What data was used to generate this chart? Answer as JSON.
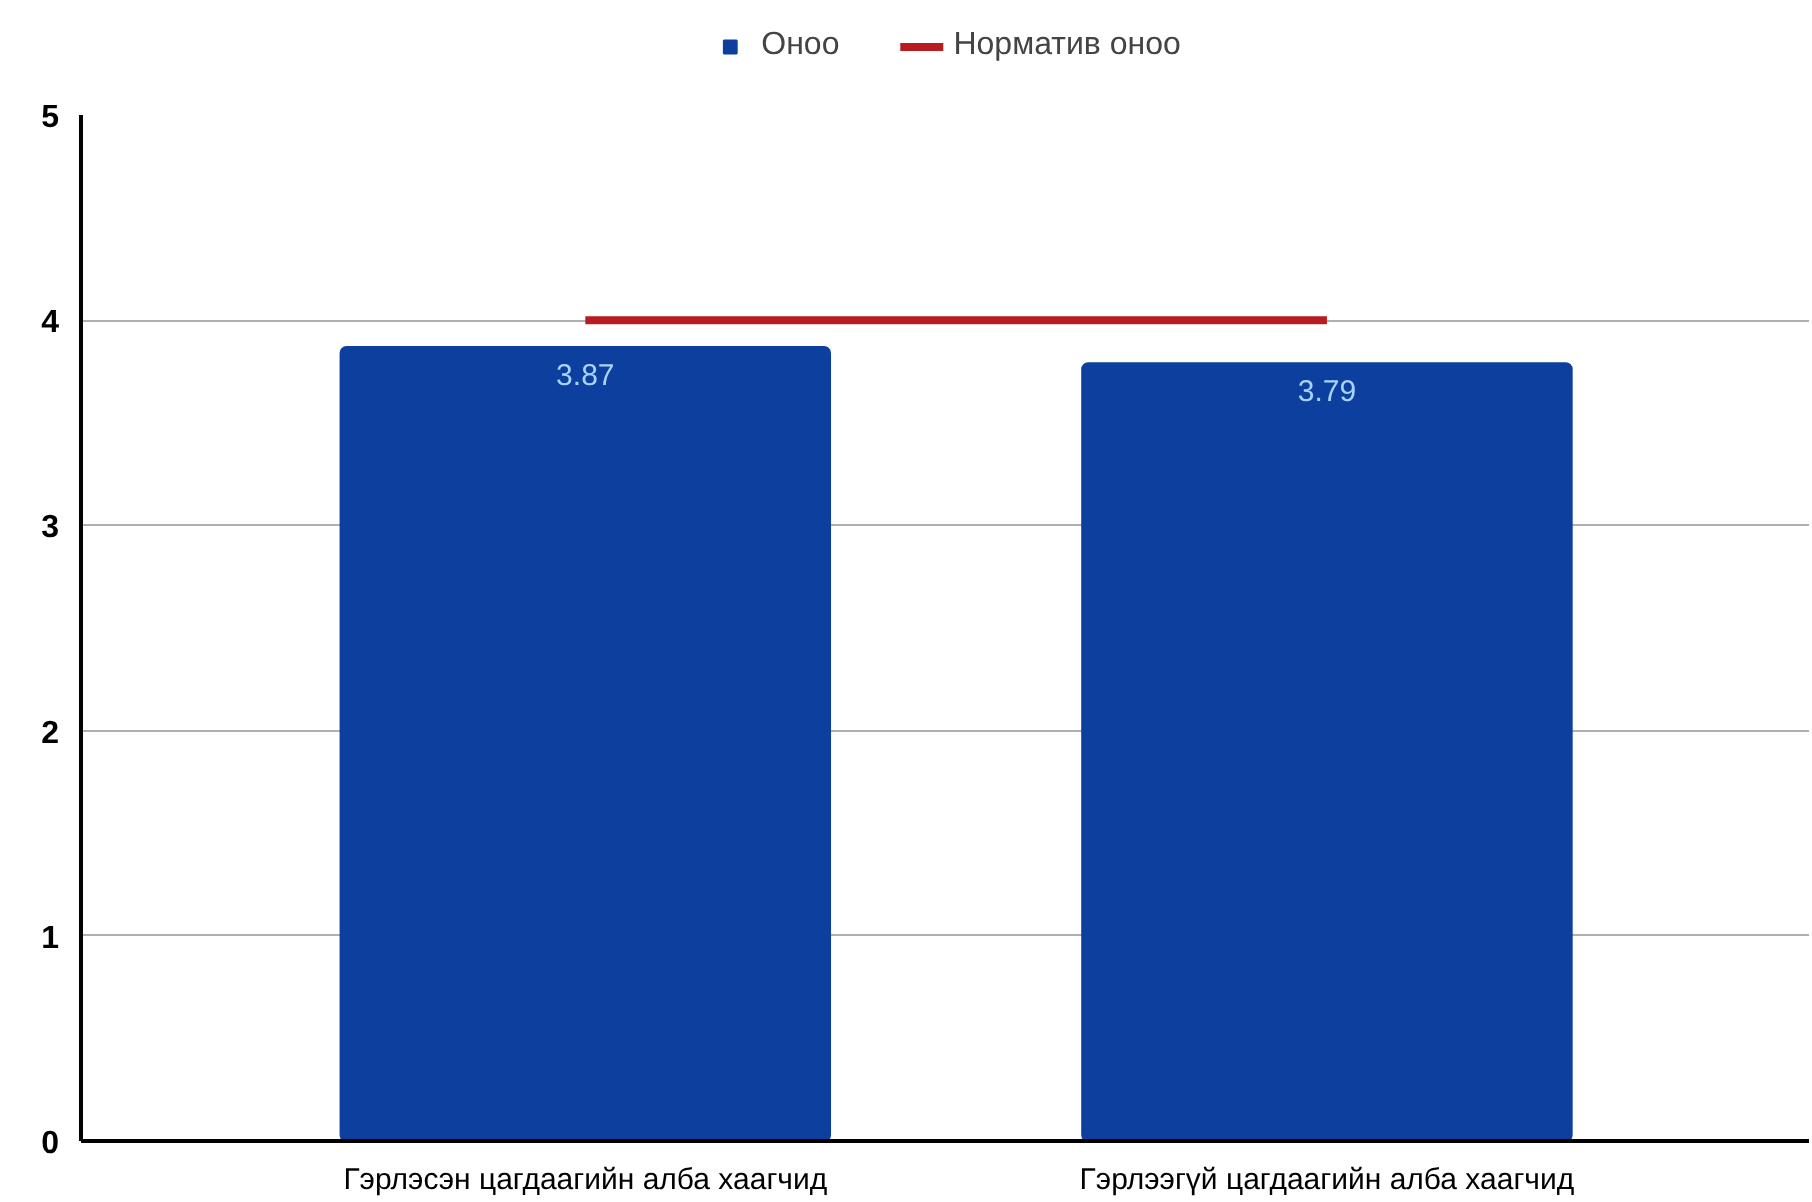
{
  "chart_data": {
    "type": "bar",
    "categories": [
      "Гэрлэсэн цагдаагийн алба хаагчид",
      "Гэрлээгүй цагдаагийн алба хаагчид"
    ],
    "series": [
      {
        "name": "Оноо",
        "color": "#0d3f9f",
        "values": [
          3.87,
          3.79
        ],
        "value_labels": [
          "3.87",
          "3.79"
        ]
      },
      {
        "name": "Норматив оноо",
        "type": "line",
        "color": "#b81c22",
        "values": [
          4,
          4
        ]
      }
    ],
    "ylim": [
      0,
      5
    ],
    "yticks": [
      0,
      1,
      2,
      3,
      4,
      5
    ],
    "grid": "y",
    "legend": "top"
  }
}
